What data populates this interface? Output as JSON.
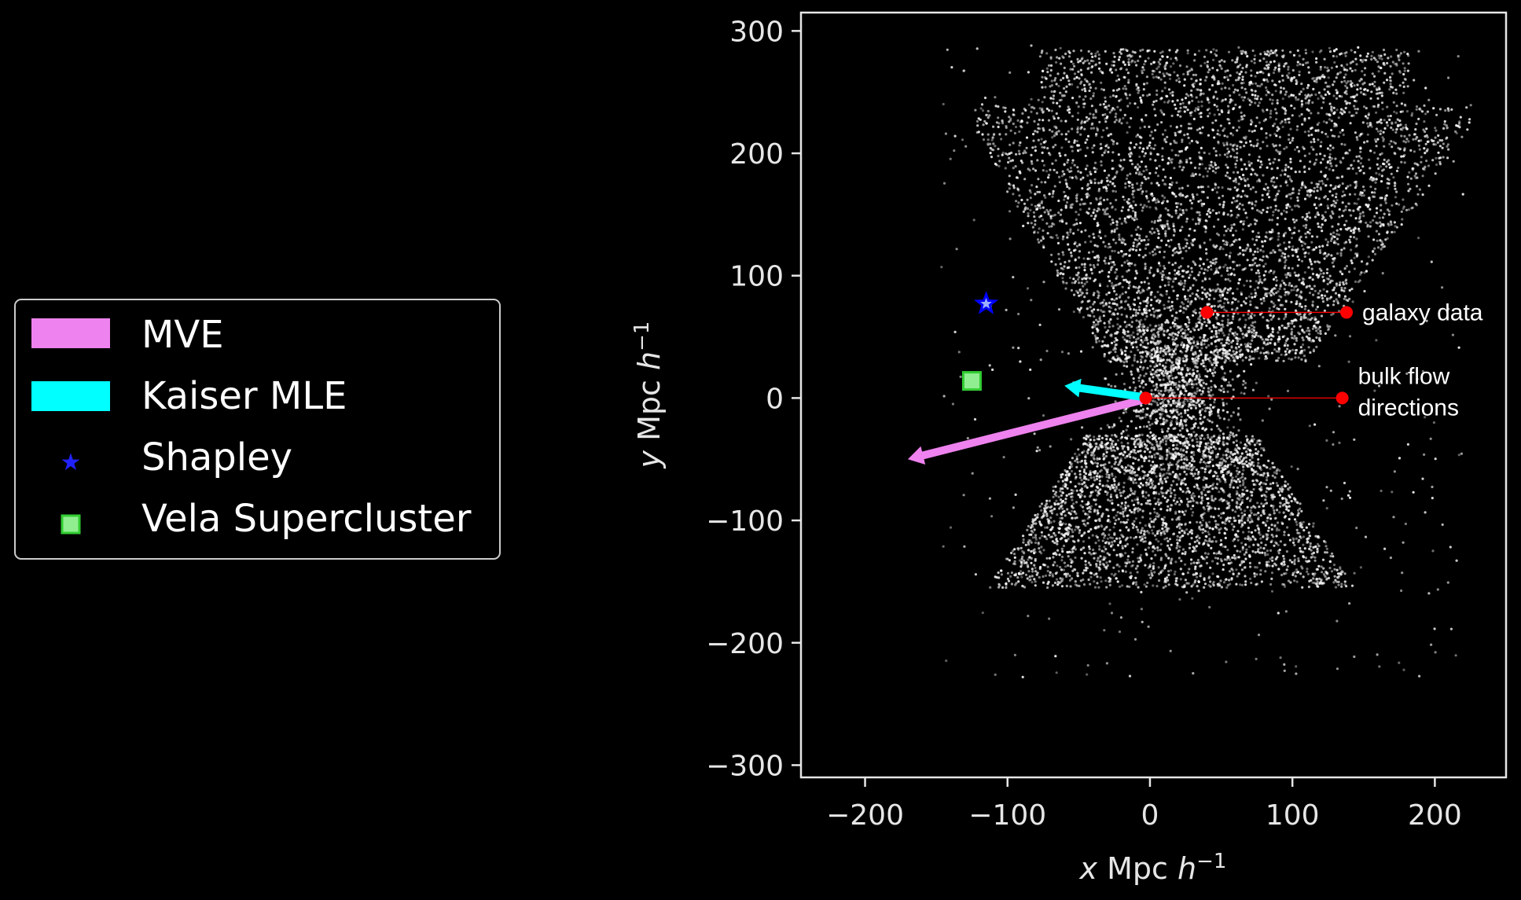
{
  "chart_data": {
    "type": "scatter",
    "title": "",
    "xlabel_var": "x",
    "xlabel_units": " Mpc ",
    "ylabel_var": "y",
    "ylabel_units": " Mpc ",
    "hubble_symbol": "h",
    "exponent": "−1",
    "xlim": [
      -245,
      250
    ],
    "ylim": [
      -310,
      315
    ],
    "xticks": [
      -200,
      -100,
      0,
      100,
      200
    ],
    "xtick_labels": [
      "−200",
      "−100",
      "0",
      "100",
      "200"
    ],
    "yticks": [
      -300,
      -200,
      -100,
      0,
      100,
      200,
      300
    ],
    "ytick_labels": [
      "−300",
      "−200",
      "−100",
      "0",
      "100",
      "200",
      "300"
    ],
    "grid": false,
    "legend_placement": "outside-left",
    "background": "#000000",
    "axes_color": "#e6e6e6",
    "series": [
      {
        "name": "MVE",
        "kind": "arrow",
        "color": "#ee82ee",
        "x": [
          0,
          -170
        ],
        "y": [
          0,
          -50
        ]
      },
      {
        "name": "Kaiser MLE",
        "kind": "arrow",
        "color": "#00ffff",
        "x": [
          0,
          -60
        ],
        "y": [
          0,
          10
        ]
      },
      {
        "name": "Shapley",
        "kind": "star-marker",
        "color": "#0000ff",
        "x": [
          -115
        ],
        "y": [
          77
        ]
      },
      {
        "name": "Vela Supercluster",
        "kind": "square-marker",
        "color": "#7fe07f",
        "x": [
          -125
        ],
        "y": [
          14
        ]
      }
    ],
    "galaxy_cloud": {
      "color": "#ffffff",
      "point_count": 9000,
      "x_range": [
        -160,
        225
      ],
      "y_range": [
        -235,
        295
      ]
    },
    "annotations": [
      {
        "lines": [
          "galaxy data"
        ],
        "color": "#ff0000",
        "from_x": 40,
        "to_x": 138,
        "y": 70
      },
      {
        "lines": [
          "bulk flow",
          "directions"
        ],
        "color": "#ff0000",
        "from_x": -3,
        "to_x": 135,
        "y": 0
      }
    ]
  }
}
